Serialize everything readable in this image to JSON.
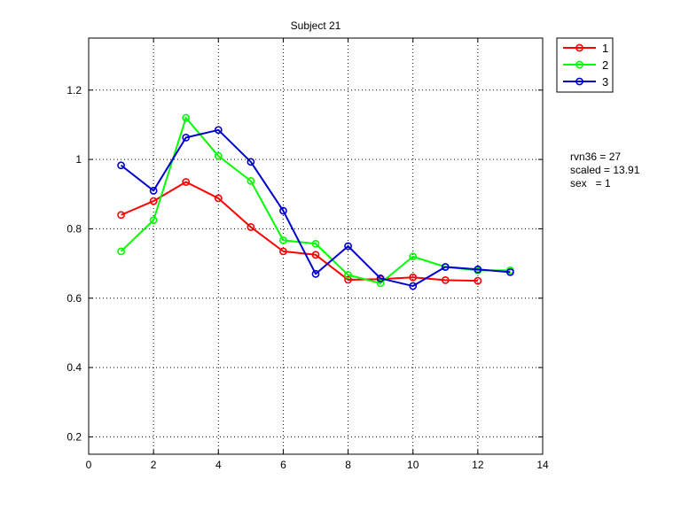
{
  "chart_data": {
    "type": "line",
    "title": "Subject 21",
    "xlabel": "",
    "ylabel": "",
    "xlim": [
      0,
      14
    ],
    "ylim": [
      0.15,
      1.35
    ],
    "xticks": [
      0,
      2,
      4,
      6,
      8,
      10,
      12,
      14
    ],
    "yticks": [
      0.2,
      0.4,
      0.6,
      0.8,
      1,
      1.2
    ],
    "xtick_labels": [
      "0",
      "2",
      "4",
      "6",
      "8",
      "10",
      "12",
      "14"
    ],
    "ytick_labels": [
      "0.2",
      "0.4",
      "0.6",
      "0.8",
      "1",
      "1.2"
    ],
    "grid": true,
    "legend_position": "outside-top-right",
    "series": [
      {
        "name": "1",
        "color": "#ff0000",
        "marker": "circle",
        "x": [
          1,
          2,
          3,
          4,
          5,
          6,
          7,
          8,
          9,
          10,
          11,
          12
        ],
        "y": [
          0.84,
          0.88,
          0.935,
          0.888,
          0.805,
          0.735,
          0.725,
          0.653,
          0.655,
          0.66,
          0.652,
          0.65
        ]
      },
      {
        "name": "2",
        "color": "#00ff00",
        "marker": "circle",
        "x": [
          1,
          2,
          3,
          4,
          5,
          6,
          7,
          8,
          9,
          10,
          11,
          12,
          13
        ],
        "y": [
          0.735,
          0.825,
          1.12,
          1.01,
          0.938,
          0.767,
          0.757,
          0.667,
          0.643,
          0.72,
          0.69,
          0.68,
          0.68
        ]
      },
      {
        "name": "3",
        "color": "#0000cc",
        "marker": "circle",
        "x": [
          1,
          2,
          3,
          4,
          5,
          6,
          7,
          8,
          9,
          10,
          11,
          12,
          13
        ],
        "y": [
          0.983,
          0.91,
          1.063,
          1.085,
          0.993,
          0.852,
          0.67,
          0.75,
          0.657,
          0.635,
          0.69,
          0.683,
          0.675
        ]
      }
    ],
    "annotations": [
      "rvn36 = 27",
      "scaled = 13.91",
      "sex   = 1"
    ]
  }
}
